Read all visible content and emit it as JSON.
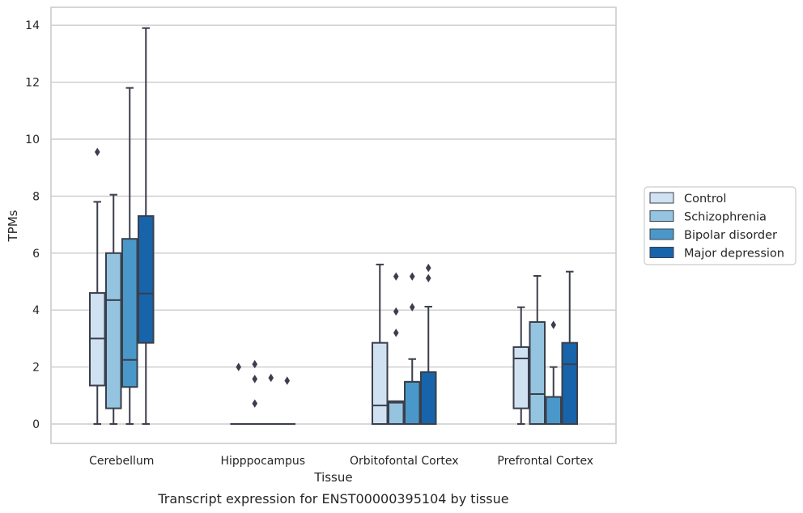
{
  "chart_data": {
    "type": "box",
    "title": "",
    "caption": "Transcript expression for ENST00000395104 by tissue",
    "xlabel": "Tissue",
    "ylabel": "TPMs",
    "ylim": [
      -0.65,
      14.6
    ],
    "yticks": [
      0,
      2,
      4,
      6,
      8,
      10,
      12,
      14
    ],
    "grid": "horizontal",
    "legend_position": "right",
    "categories": [
      "Cerebellum",
      "Hipppocampus",
      "Orbitofontal Cortex",
      "Prefrontal Cortex"
    ],
    "series": [
      {
        "name": "Control",
        "color": "#d0e1f2",
        "boxes": [
          {
            "whisker_low": 0,
            "q1": 1.35,
            "median": 3.0,
            "q3": 4.6,
            "whisker_high": 7.8,
            "outliers": [
              9.55
            ]
          },
          {
            "whisker_low": 0,
            "q1": 0,
            "median": 0,
            "q3": 0,
            "whisker_high": 0,
            "outliers": [
              2.0
            ]
          },
          {
            "whisker_low": 0,
            "q1": 0,
            "median": 0.65,
            "q3": 2.85,
            "whisker_high": 5.6,
            "outliers": []
          },
          {
            "whisker_low": 0,
            "q1": 0.55,
            "median": 2.3,
            "q3": 2.7,
            "whisker_high": 4.1,
            "outliers": []
          }
        ]
      },
      {
        "name": "Schizophrenia",
        "color": "#94c4df",
        "boxes": [
          {
            "whisker_low": 0,
            "q1": 0.55,
            "median": 4.35,
            "q3": 6.0,
            "whisker_high": 8.05,
            "outliers": []
          },
          {
            "whisker_low": 0,
            "q1": 0,
            "median": 0,
            "q3": 0,
            "whisker_high": 0,
            "outliers": [
              0.72,
              1.58,
              2.1
            ]
          },
          {
            "whisker_low": 0,
            "q1": 0,
            "median": 0.75,
            "q3": 0.8,
            "whisker_high": 0.8,
            "outliers": [
              3.2,
              3.95,
              5.18
            ]
          },
          {
            "whisker_low": 0,
            "q1": 0,
            "median": 1.05,
            "q3": 3.58,
            "whisker_high": 5.2,
            "outliers": []
          }
        ]
      },
      {
        "name": "Bipolar disorder",
        "color": "#4a98c9",
        "boxes": [
          {
            "whisker_low": 0,
            "q1": 1.3,
            "median": 2.25,
            "q3": 6.5,
            "whisker_high": 11.8,
            "outliers": []
          },
          {
            "whisker_low": 0,
            "q1": 0,
            "median": 0,
            "q3": 0,
            "whisker_high": 0,
            "outliers": [
              1.62
            ]
          },
          {
            "whisker_low": 0,
            "q1": 0,
            "median": 1.48,
            "q3": 1.48,
            "whisker_high": 2.28,
            "outliers": [
              4.1,
              5.18
            ]
          },
          {
            "whisker_low": 0,
            "q1": 0,
            "median": 0.95,
            "q3": 0.95,
            "whisker_high": 2.0,
            "outliers": [
              3.48
            ]
          }
        ]
      },
      {
        "name": "Major depression",
        "color": "#1764ab",
        "boxes": [
          {
            "whisker_low": 0,
            "q1": 2.85,
            "median": 4.58,
            "q3": 7.3,
            "whisker_high": 13.9,
            "outliers": []
          },
          {
            "whisker_low": 0,
            "q1": 0,
            "median": 0,
            "q3": 0,
            "whisker_high": 0,
            "outliers": [
              1.52
            ]
          },
          {
            "whisker_low": 0,
            "q1": 0,
            "median": 1.82,
            "q3": 1.82,
            "whisker_high": 4.12,
            "outliers": [
              5.12,
              5.48
            ]
          },
          {
            "whisker_low": 0,
            "q1": 0,
            "median": 2.1,
            "q3": 2.85,
            "whisker_high": 5.35,
            "outliers": []
          }
        ]
      }
    ]
  }
}
